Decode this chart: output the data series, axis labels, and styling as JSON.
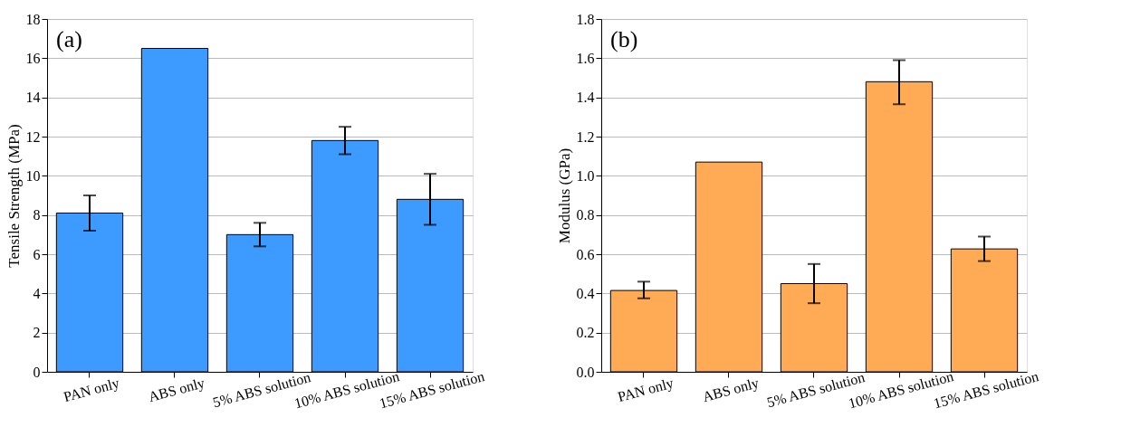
{
  "chart_data": [
    {
      "type": "bar",
      "ylabel": "Tensile Strength (MPa)",
      "annotations": [
        "(a)"
      ],
      "categories": [
        "PAN only",
        "ABS only",
        "5% ABS solution",
        "10% ABS solution",
        "15% ABS solution"
      ],
      "values": [
        8.1,
        16.5,
        7.0,
        11.8,
        8.8
      ],
      "color": "#3d9bff",
      "errors": [
        [
          7.2,
          9.0
        ],
        null,
        [
          6.4,
          7.6
        ],
        [
          11.1,
          12.5
        ],
        [
          7.5,
          10.1
        ]
      ],
      "ylim": [
        0,
        18
      ],
      "yticks": [
        0,
        2,
        4,
        6,
        8,
        10,
        12,
        14,
        16,
        18
      ],
      "grid": "y"
    },
    {
      "type": "bar",
      "ylabel": "Modulus (GPa)",
      "annotations": [
        "(b)"
      ],
      "categories": [
        "PAN only",
        "ABS only",
        "5% ABS solution",
        "10% ABS solution",
        "15% ABS solution"
      ],
      "values": [
        0.415,
        1.07,
        0.45,
        1.48,
        0.627
      ],
      "color": "#ffaa55",
      "errors": [
        [
          0.375,
          0.46
        ],
        null,
        [
          0.35,
          0.55
        ],
        [
          1.365,
          1.59
        ],
        [
          0.565,
          0.69
        ]
      ],
      "ylim": [
        0,
        1.8
      ],
      "yticks": [
        {
          "value": 0,
          "label": "0.0"
        },
        0.2,
        0.4,
        0.6,
        0.8,
        {
          "value": 1.0,
          "label": "1.0"
        },
        1.2,
        1.4,
        1.6,
        1.8
      ],
      "grid": "y"
    }
  ]
}
